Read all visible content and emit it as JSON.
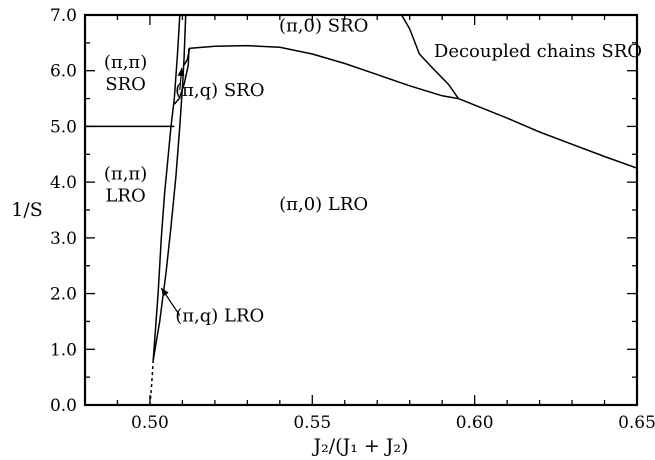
{
  "chart_data": {
    "type": "line",
    "title": "",
    "xlabel": "J₂/(J₁ + J₂)",
    "ylabel": "1/S",
    "xlim": [
      0.48,
      0.65
    ],
    "ylim": [
      0.0,
      7.0
    ],
    "x_ticks": [
      {
        "value": 0.5,
        "label": "0.50"
      },
      {
        "value": 0.55,
        "label": "0.55"
      },
      {
        "value": 0.6,
        "label": "0.60"
      },
      {
        "value": 0.65,
        "label": "0.65"
      }
    ],
    "y_ticks": [
      {
        "value": 0.0,
        "label": "0.0"
      },
      {
        "value": 1.0,
        "label": "1.0"
      },
      {
        "value": 2.0,
        "label": "2.0"
      },
      {
        "value": 3.0,
        "label": "3.0"
      },
      {
        "value": 4.0,
        "label": "4.0"
      },
      {
        "value": 5.0,
        "label": "5.0"
      },
      {
        "value": 6.0,
        "label": "6.0"
      },
      {
        "value": 7.0,
        "label": "7.0"
      }
    ],
    "boundaries": [
      {
        "id": "pipi-sro-lro",
        "style": "solid",
        "points": [
          [
            0.48,
            5.0
          ],
          [
            0.5075,
            5.0
          ]
        ]
      },
      {
        "id": "left-boundary",
        "style": "solid",
        "points": [
          [
            0.501,
            0.8
          ],
          [
            0.5025,
            2.0
          ],
          [
            0.5035,
            3.0
          ],
          [
            0.5045,
            3.8
          ],
          [
            0.5055,
            4.4
          ],
          [
            0.5065,
            5.0
          ],
          [
            0.5075,
            5.5
          ],
          [
            0.5085,
            6.3
          ],
          [
            0.5092,
            7.0
          ]
        ]
      },
      {
        "id": "right-boundary",
        "style": "solid",
        "points": [
          [
            0.501,
            0.8
          ],
          [
            0.503,
            1.5
          ],
          [
            0.505,
            2.4
          ],
          [
            0.5065,
            3.2
          ],
          [
            0.508,
            4.1
          ],
          [
            0.5092,
            5.0
          ],
          [
            0.51,
            5.7
          ],
          [
            0.5105,
            6.2
          ],
          [
            0.511,
            7.0
          ]
        ]
      },
      {
        "id": "piq-sro-lower",
        "style": "solid",
        "points": [
          [
            0.5075,
            5.4
          ],
          [
            0.509,
            5.5
          ],
          [
            0.5105,
            5.75
          ],
          [
            0.5118,
            6.1
          ],
          [
            0.512,
            6.4
          ]
        ]
      },
      {
        "id": "piq-sro-right",
        "style": "solid",
        "points": [
          [
            0.5105,
            6.1
          ],
          [
            0.5115,
            6.2
          ],
          [
            0.5122,
            6.4
          ]
        ]
      },
      {
        "id": "pi0-lro-sro",
        "style": "solid",
        "points": [
          [
            0.512,
            6.4
          ],
          [
            0.52,
            6.44
          ],
          [
            0.53,
            6.45
          ],
          [
            0.54,
            6.42
          ],
          [
            0.55,
            6.3
          ],
          [
            0.56,
            6.13
          ],
          [
            0.57,
            5.93
          ],
          [
            0.58,
            5.73
          ],
          [
            0.59,
            5.55
          ],
          [
            0.595,
            5.5
          ],
          [
            0.61,
            5.15
          ],
          [
            0.62,
            4.9
          ],
          [
            0.63,
            4.68
          ],
          [
            0.64,
            4.46
          ],
          [
            0.65,
            4.25
          ]
        ]
      },
      {
        "id": "pi0-sro-decoupled",
        "style": "solid",
        "points": [
          [
            0.5775,
            7.0
          ],
          [
            0.58,
            6.75
          ],
          [
            0.583,
            6.3
          ],
          [
            0.587,
            6.05
          ],
          [
            0.592,
            5.75
          ],
          [
            0.595,
            5.5
          ]
        ]
      },
      {
        "id": "extrapolation",
        "style": "dashed",
        "points": [
          [
            0.5,
            0.0
          ],
          [
            0.5005,
            0.35
          ],
          [
            0.501,
            0.8
          ]
        ]
      }
    ],
    "annotations": [
      {
        "id": "pipi-sro",
        "lines": [
          "(π,π)",
          "SRO"
        ],
        "x": 0.4925,
        "y": 6.05
      },
      {
        "id": "pipi-lro",
        "lines": [
          "(π,π)",
          "LRO"
        ],
        "x": 0.4925,
        "y": 4.05
      },
      {
        "id": "piq-sro",
        "lines": [
          "(π,q) SRO"
        ],
        "x": 0.5215,
        "y": 5.55,
        "arrow_to": [
          0.5098,
          6.05
        ]
      },
      {
        "id": "pi0-sro",
        "lines": [
          "(π,0) SRO"
        ],
        "x": 0.5535,
        "y": 6.7
      },
      {
        "id": "decoupled-sro",
        "lines": [
          "Decoupled chains SRO"
        ],
        "x": 0.6195,
        "y": 6.25
      },
      {
        "id": "pi0-lro",
        "lines": [
          "(π,0) LRO"
        ],
        "x": 0.5535,
        "y": 3.5
      },
      {
        "id": "piq-lro",
        "lines": [
          "(π,q) LRO"
        ],
        "x": 0.5215,
        "y": 1.5,
        "arrow_to": [
          0.5035,
          2.1
        ]
      }
    ]
  }
}
